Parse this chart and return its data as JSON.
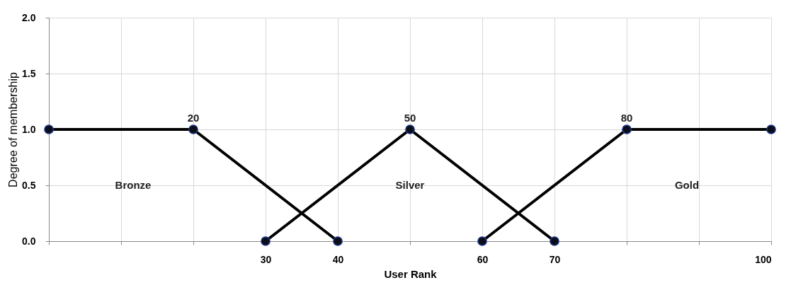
{
  "chart_data": {
    "type": "line",
    "xlabel": "User Rank",
    "ylabel": "Degree of membership",
    "xlim": [
      0,
      100
    ],
    "ylim": [
      0,
      2
    ],
    "xticks": [
      {
        "value": 0,
        "label": null
      },
      {
        "value": 10,
        "label": null
      },
      {
        "value": 20,
        "label": null
      },
      30,
      40,
      {
        "value": 50,
        "label": null
      },
      60,
      70,
      {
        "value": 80,
        "label": null
      },
      {
        "value": 90,
        "label": null
      },
      100
    ],
    "yticks": [
      {
        "value": 0,
        "label": "0.0"
      },
      0.5,
      {
        "value": 1,
        "label": "1.0"
      },
      1.5,
      {
        "value": 2,
        "label": "2.0"
      }
    ],
    "grid": true,
    "marker": "circle",
    "line_style": "solid",
    "series": [
      {
        "color": "#000000",
        "x": [
          0,
          20,
          40
        ],
        "values": [
          1,
          1,
          0
        ]
      },
      {
        "color": "#000000",
        "x": [
          30,
          50,
          70
        ],
        "values": [
          0,
          1,
          0
        ]
      },
      {
        "color": "#000000",
        "x": [
          60,
          80,
          100
        ],
        "values": [
          0,
          1,
          1
        ]
      }
    ],
    "annotations": [
      {
        "text": "20",
        "x": 20,
        "y": 1
      },
      {
        "text": "50",
        "x": 50,
        "y": 1
      },
      {
        "text": "80",
        "x": 80,
        "y": 1
      },
      "Bronze",
      "Silver",
      "Gold"
    ]
  }
}
